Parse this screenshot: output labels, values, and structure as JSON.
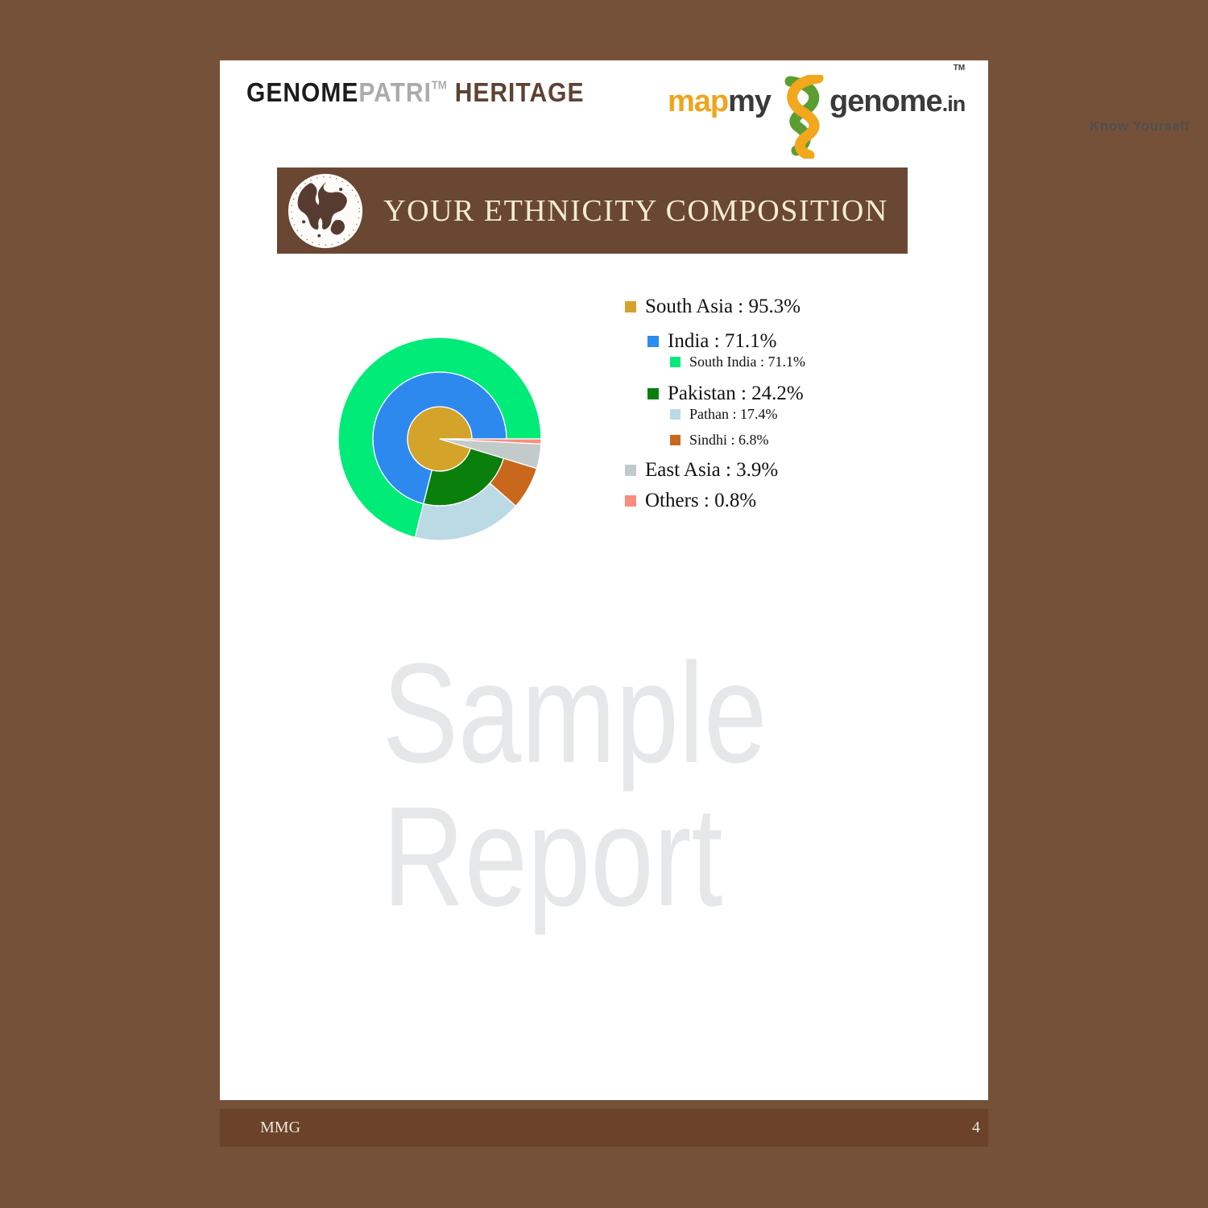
{
  "header": {
    "brand_left": {
      "genome": "GENOME",
      "patri": "PATRI",
      "tm": "TM",
      "heritage": "HERITAGE"
    },
    "brand_right": {
      "map": "map",
      "my": "my",
      "genome": "genome",
      "tm": "TM",
      "dot_in": ".in",
      "tagline": "Know Yourself"
    }
  },
  "banner": {
    "title": "YOUR ETHNICITY COMPOSITION"
  },
  "watermark": {
    "line1": "Sample",
    "line2": "Report"
  },
  "footer": {
    "left": "MMG",
    "page_number": "4"
  },
  "colors": {
    "background_brown": "#75513A",
    "banner_brown": "#6A4732",
    "footer_brown": "#6A432A",
    "banner_text_cream": "#F3ECD3",
    "logo_orange": "#F0A41B",
    "helix_green": "#5B9D30",
    "heritage_brown": "#5E4233",
    "watermark_gray": "#E5E7E8"
  },
  "legend": {
    "items": [
      {
        "text": "South Asia : 95.3%",
        "level": 0,
        "color": "#D5A32B"
      },
      {
        "text": "India : 71.1%",
        "level": 1,
        "color": "#2E8BEF"
      },
      {
        "text": "South India : 71.1%",
        "level": 2,
        "color": "#00EB78"
      },
      {
        "text": "Pakistan : 24.2%",
        "level": 1,
        "color": "#0B7F0B"
      },
      {
        "text": "Pathan : 17.4%",
        "level": 2,
        "color": "#BCD9E6"
      },
      {
        "text": "Sindhi : 6.8%",
        "level": 2,
        "color": "#C9671C"
      },
      {
        "text": "East Asia : 3.9%",
        "level": 0,
        "color": "#C2CBCA"
      },
      {
        "text": "Others : 0.8%",
        "level": 0,
        "color": "#F98D7E"
      }
    ]
  },
  "chart_data": {
    "type": "pie",
    "variant": "multi-level-sunburst",
    "title": "YOUR ETHNICITY COMPOSITION",
    "unit": "percent",
    "start_angle_deg": 0,
    "direction": "counterclockwise",
    "ring_radii": [
      0,
      40,
      83,
      126
    ],
    "nodes": [
      {
        "name": "South Asia",
        "value": 95.3,
        "parent": null,
        "color": "#D3A32A"
      },
      {
        "name": "India",
        "value": 71.1,
        "parent": "South Asia",
        "color": "#2E89EF"
      },
      {
        "name": "South India",
        "value": 71.1,
        "parent": "India",
        "color": "#00EB78"
      },
      {
        "name": "Pakistan",
        "value": 24.2,
        "parent": "South Asia",
        "color": "#0B7F0B"
      },
      {
        "name": "Pathan",
        "value": 17.4,
        "parent": "Pakistan",
        "color": "#BCD9E6"
      },
      {
        "name": "Sindhi",
        "value": 6.8,
        "parent": "Pakistan",
        "color": "#C9671C"
      },
      {
        "name": "East Asia",
        "value": 3.9,
        "parent": null,
        "color": "#C2CBCA"
      },
      {
        "name": "Others",
        "value": 0.8,
        "parent": null,
        "color": "#F98D7E"
      }
    ]
  }
}
